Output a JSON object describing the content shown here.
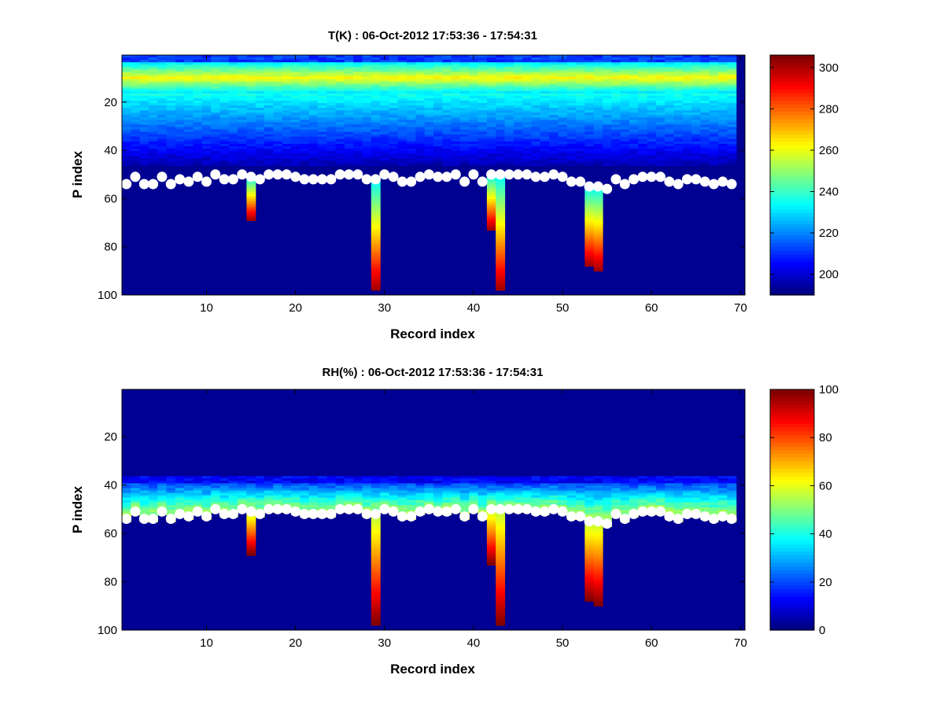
{
  "figure": {
    "description": "Heatmap panels of radiosonde-like profiles with boundary markers"
  },
  "chart_data": [
    {
      "type": "heatmap",
      "id": "temperature",
      "title": "T(K) : 06-Oct-2012 17:53:36 - 17:54:31",
      "xlabel": "Record index",
      "ylabel": "P index",
      "xlim": [
        0.5,
        70.5
      ],
      "ylim": [
        1,
        100
      ],
      "y_reversed": true,
      "xticks": [
        10,
        20,
        30,
        40,
        50,
        60,
        70
      ],
      "yticks": [
        20,
        40,
        60,
        80,
        100
      ],
      "colorbar": {
        "min": 190,
        "max": 306,
        "ticks": [
          200,
          220,
          240,
          260,
          280,
          300
        ],
        "colormap": "jet"
      },
      "records": 70,
      "levels": 100,
      "marker_p_index": [
        54,
        51,
        54,
        54,
        51,
        54,
        52,
        53,
        51,
        53,
        50,
        52,
        52,
        50,
        51,
        52,
        50,
        50,
        50,
        51,
        52,
        52,
        52,
        52,
        50,
        50,
        50,
        52,
        52,
        50,
        51,
        53,
        53,
        51,
        50,
        51,
        51,
        50,
        53,
        50,
        53,
        50,
        50,
        50,
        50,
        50,
        51,
        51,
        50,
        51,
        53,
        53,
        55,
        55,
        56,
        52,
        54,
        52,
        51,
        51,
        51,
        53,
        54,
        52,
        52,
        53,
        54,
        53,
        54,
        54
      ],
      "anomaly_columns": [
        {
          "record": 15,
          "p_end": 69
        },
        {
          "record": 29,
          "p_end": 98
        },
        {
          "record": 42,
          "p_end": 73
        },
        {
          "record": 43,
          "p_end": 98
        },
        {
          "record": 53,
          "p_end": 88
        },
        {
          "record": 54,
          "p_end": 90
        }
      ],
      "background_value": 192
    },
    {
      "type": "heatmap",
      "id": "humidity",
      "title": "RH(%) : 06-Oct-2012 17:53:36 - 17:54:31",
      "xlabel": "Record index",
      "ylabel": "P index",
      "xlim": [
        0.5,
        70.5
      ],
      "ylim": [
        1,
        100
      ],
      "y_reversed": true,
      "xticks": [
        10,
        20,
        30,
        40,
        50,
        60,
        70
      ],
      "yticks": [
        20,
        40,
        60,
        80,
        100
      ],
      "colorbar": {
        "min": 0,
        "max": 100,
        "ticks": [
          0,
          20,
          40,
          60,
          80,
          100
        ],
        "colormap": "jet"
      },
      "records": 70,
      "levels": 100,
      "marker_p_index": [
        54,
        51,
        54,
        54,
        51,
        54,
        52,
        53,
        51,
        53,
        50,
        52,
        52,
        50,
        51,
        52,
        50,
        50,
        50,
        51,
        52,
        52,
        52,
        52,
        50,
        50,
        50,
        52,
        52,
        50,
        51,
        53,
        53,
        51,
        50,
        51,
        51,
        50,
        53,
        50,
        53,
        50,
        50,
        50,
        50,
        50,
        51,
        51,
        50,
        51,
        53,
        53,
        55,
        55,
        56,
        52,
        54,
        52,
        51,
        51,
        51,
        53,
        54,
        52,
        52,
        53,
        54,
        53,
        54,
        54
      ],
      "anomaly_columns": [
        {
          "record": 15,
          "p_end": 69
        },
        {
          "record": 29,
          "p_end": 98
        },
        {
          "record": 42,
          "p_end": 73
        },
        {
          "record": 43,
          "p_end": 98
        },
        {
          "record": 53,
          "p_end": 88
        },
        {
          "record": 54,
          "p_end": 90
        }
      ],
      "background_value": 2
    }
  ]
}
